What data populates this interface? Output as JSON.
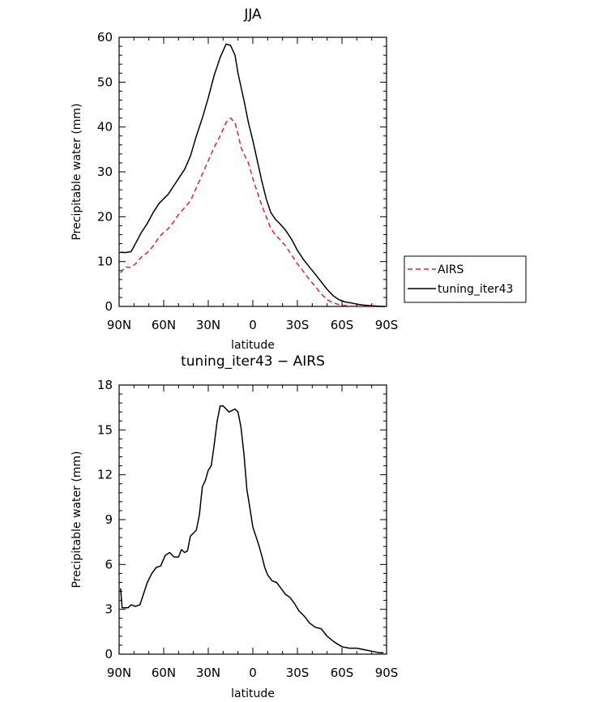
{
  "chart_data": [
    {
      "type": "line",
      "title": "JJA",
      "xlabel": "latitude",
      "ylabel": "Precipitable water (mm)",
      "xticks": [
        "90N",
        "60N",
        "30N",
        "0",
        "30S",
        "60S",
        "90S"
      ],
      "yticks": [
        "0",
        "10",
        "20",
        "30",
        "40",
        "50",
        "60"
      ],
      "xlim": [
        90,
        -90
      ],
      "ylim": [
        0,
        60
      ],
      "legend": "right",
      "series": [
        {
          "name": "AIRS",
          "color": "#e8212a",
          "dash": "dashed",
          "x": [
            89,
            86,
            82,
            79,
            75,
            71,
            67,
            63,
            60,
            57,
            53,
            50,
            46,
            42,
            38,
            34,
            30,
            26,
            22,
            18,
            15,
            12,
            10,
            8,
            6,
            3,
            0,
            -3,
            -6,
            -9,
            -12,
            -15,
            -18,
            -22,
            -26,
            -30,
            -34,
            -38,
            -42,
            -46,
            -50,
            -54,
            -58,
            -62,
            -66,
            -70,
            -74,
            -78,
            -82,
            -86,
            -89
          ],
          "y": [
            7.5,
            8.8,
            8.7,
            9.5,
            11.0,
            12.0,
            13.5,
            15.5,
            16.5,
            17.3,
            19.0,
            20.5,
            22.0,
            23.5,
            26.5,
            29.5,
            32.5,
            35.5,
            38.0,
            41.0,
            42.0,
            41.0,
            38.5,
            35.5,
            34.0,
            32.0,
            28.5,
            25.5,
            22.5,
            20.0,
            17.5,
            16.0,
            15.0,
            13.5,
            11.5,
            9.5,
            7.8,
            6.0,
            4.5,
            2.8,
            1.5,
            0.8,
            0.4,
            0.2,
            0.1,
            0.05,
            0.0,
            0.0,
            0.0,
            0.0,
            0.0
          ]
        },
        {
          "name": "tuning_iter43",
          "color": "#000000",
          "dash": "solid",
          "x": [
            89,
            86,
            82,
            79,
            75,
            71,
            67,
            63,
            60,
            57,
            53,
            50,
            46,
            42,
            38,
            34,
            30,
            26,
            22,
            18,
            15,
            12,
            10,
            8,
            6,
            3,
            0,
            -3,
            -6,
            -9,
            -12,
            -15,
            -18,
            -22,
            -26,
            -30,
            -34,
            -38,
            -42,
            -46,
            -50,
            -54,
            -58,
            -62,
            -66,
            -70,
            -74,
            -78,
            -82,
            -86,
            -89
          ],
          "y": [
            12.1,
            12.0,
            12.2,
            14.0,
            16.5,
            18.5,
            21.0,
            23.0,
            24.0,
            25.0,
            27.0,
            28.5,
            30.5,
            33.5,
            38.0,
            42.0,
            46.5,
            51.5,
            55.5,
            58.5,
            58.2,
            56.0,
            52.0,
            49.0,
            46.0,
            41.0,
            37.0,
            32.5,
            28.0,
            24.0,
            21.0,
            19.5,
            18.5,
            17.0,
            15.0,
            12.5,
            10.5,
            8.8,
            7.2,
            5.5,
            3.8,
            2.4,
            1.5,
            1.0,
            0.8,
            0.5,
            0.3,
            0.2,
            0.1,
            0.0,
            0.0
          ]
        }
      ]
    },
    {
      "type": "line",
      "title": "tuning_iter43 − AIRS",
      "xlabel": "latitude",
      "ylabel": "Precipitable water (mm)",
      "xticks": [
        "90N",
        "60N",
        "30N",
        "0",
        "30S",
        "60S",
        "90S"
      ],
      "yticks": [
        "0",
        "3",
        "6",
        "9",
        "12",
        "15",
        "18"
      ],
      "xlim": [
        90,
        -90
      ],
      "ylim": [
        0,
        18
      ],
      "series": [
        {
          "color": "#000000",
          "dash": "solid",
          "x": [
            89,
            88,
            86,
            84,
            82,
            79,
            76,
            74,
            71,
            68,
            65,
            62,
            59,
            56,
            53,
            50,
            48,
            46,
            44,
            42,
            40,
            38,
            36,
            34,
            32,
            30,
            28,
            26,
            24,
            22,
            20,
            18,
            16,
            14,
            12,
            10,
            8,
            6,
            4,
            2,
            0,
            -2,
            -4,
            -6,
            -8,
            -10,
            -13,
            -16,
            -19,
            -22,
            -25,
            -28,
            -31,
            -35,
            -38,
            -42,
            -46,
            -50,
            -55,
            -60,
            -65,
            -70,
            -75,
            -80,
            -85,
            -88
          ],
          "y": [
            4.4,
            3.1,
            3.1,
            3.1,
            3.3,
            3.2,
            3.3,
            3.9,
            4.8,
            5.4,
            5.8,
            5.9,
            6.6,
            6.8,
            6.5,
            6.5,
            7.0,
            6.8,
            6.9,
            7.9,
            8.1,
            8.3,
            9.3,
            11.2,
            11.6,
            12.3,
            12.6,
            14.0,
            15.6,
            16.6,
            16.6,
            16.4,
            16.2,
            16.3,
            16.4,
            16.2,
            15.2,
            13.4,
            11.0,
            9.8,
            8.5,
            7.9,
            7.3,
            6.6,
            5.8,
            5.3,
            4.9,
            4.8,
            4.4,
            4.0,
            3.8,
            3.4,
            2.9,
            2.5,
            2.1,
            1.8,
            1.7,
            1.2,
            0.8,
            0.5,
            0.4,
            0.4,
            0.3,
            0.2,
            0.1,
            0.1
          ]
        }
      ]
    }
  ]
}
